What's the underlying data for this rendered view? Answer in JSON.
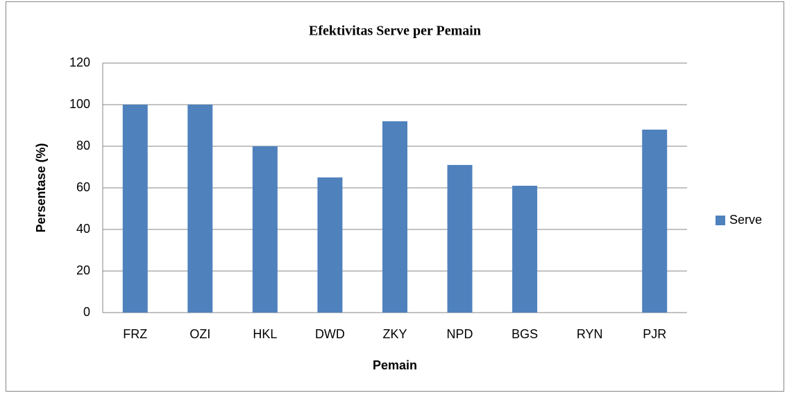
{
  "chart_data": {
    "type": "bar",
    "title": "Efektivitas Serve per Pemain",
    "x_label": "Pemain",
    "y_label": "Persentase (%)",
    "categories": [
      "FRZ",
      "OZI",
      "HKL",
      "DWD",
      "ZKY",
      "NPD",
      "BGS",
      "RYN",
      "PJR"
    ],
    "series": [
      {
        "name": "Serve",
        "color": "#4f81bd",
        "values": [
          100,
          100,
          80,
          65,
          92,
          71,
          61,
          0,
          88
        ]
      }
    ],
    "ylim": [
      0,
      120
    ],
    "yticks": [
      0,
      20,
      40,
      60,
      80,
      100,
      120
    ],
    "grid": true,
    "legend": "right"
  }
}
